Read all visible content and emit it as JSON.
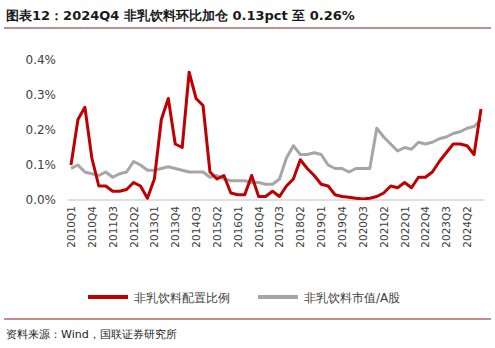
{
  "chart_data": {
    "type": "line",
    "title": "图表12：2024Q4 非乳饮料环比加仓 0.13pct 至 0.26%",
    "source": "资料来源：Wind，国联证券研究所",
    "categories": [
      "2010Q1",
      null,
      null,
      "2010Q4",
      null,
      null,
      "2011Q3",
      null,
      null,
      "2012Q2",
      null,
      null,
      "2013Q1",
      null,
      null,
      "2013Q4",
      null,
      null,
      "2014Q3",
      null,
      null,
      "2015Q2",
      null,
      null,
      "2016Q1",
      null,
      null,
      "2016Q4",
      null,
      null,
      "2017Q3",
      null,
      null,
      "2018Q2",
      null,
      null,
      "2019Q1",
      null,
      null,
      "2019Q4",
      null,
      null,
      "2020Q3",
      null,
      null,
      "2021Q2",
      null,
      null,
      "2022Q1",
      null,
      null,
      "2022Q4",
      null,
      null,
      "2023Q3",
      null,
      null,
      "2024Q2",
      null,
      null
    ],
    "series": [
      {
        "name": "非乳饮料配置比例",
        "color": "#c00000",
        "values": [
          0.1,
          0.23,
          0.265,
          0.12,
          0.04,
          0.04,
          0.025,
          0.025,
          0.03,
          0.05,
          0.04,
          0.005,
          0.06,
          0.23,
          0.29,
          0.16,
          0.15,
          0.365,
          0.29,
          0.27,
          0.08,
          0.06,
          0.07,
          0.02,
          0.015,
          0.015,
          0.07,
          0.01,
          0.01,
          0.025,
          0.01,
          0.04,
          0.06,
          0.115,
          0.09,
          0.07,
          0.045,
          0.04,
          0.015,
          0.01,
          0.008,
          0.005,
          0.003,
          0.005,
          0.01,
          0.02,
          0.04,
          0.035,
          0.05,
          0.035,
          0.065,
          0.065,
          0.08,
          0.11,
          0.135,
          0.16,
          0.16,
          0.155,
          0.13,
          0.26
        ]
      },
      {
        "name": "非乳饮料市值/A股",
        "color": "#a6a6a6",
        "values": [
          0.09,
          0.1,
          0.08,
          0.075,
          0.07,
          0.08,
          0.065,
          0.075,
          0.08,
          0.11,
          0.1,
          0.085,
          0.085,
          0.09,
          0.095,
          0.09,
          0.085,
          0.08,
          0.08,
          0.08,
          0.065,
          0.07,
          0.06,
          0.055,
          0.055,
          0.055,
          0.05,
          0.05,
          0.045,
          0.045,
          0.06,
          0.12,
          0.155,
          0.13,
          0.13,
          0.135,
          0.13,
          0.1,
          0.09,
          0.09,
          0.08,
          0.09,
          0.09,
          0.09,
          0.205,
          0.18,
          0.16,
          0.14,
          0.15,
          0.145,
          0.165,
          0.16,
          0.165,
          0.175,
          0.18,
          0.19,
          0.195,
          0.205,
          0.21,
          0.23
        ]
      }
    ],
    "ylim": [
      0,
      0.4
    ],
    "yticks": [
      {
        "value": 0,
        "label": "0.0%"
      },
      {
        "value": 0.1,
        "label": "0.1%"
      },
      {
        "value": 0.2,
        "label": "0.2%"
      },
      {
        "value": 0.3,
        "label": "0.3%"
      },
      {
        "value": 0.4,
        "label": "0.4%"
      }
    ],
    "grid": false,
    "legend": "bottom"
  }
}
